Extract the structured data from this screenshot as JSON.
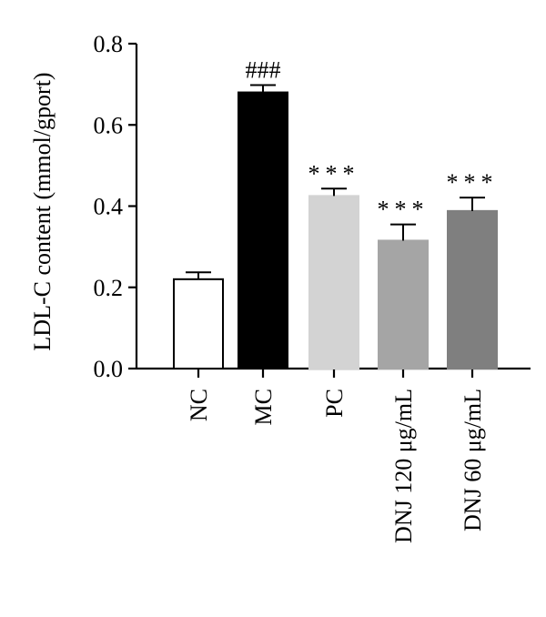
{
  "chart_data": {
    "type": "bar",
    "categories": [
      "NC",
      "MC",
      "PC",
      "DNJ 120 μg/mL",
      "DNJ 60 μg/mL"
    ],
    "values": [
      0.22,
      0.68,
      0.425,
      0.315,
      0.388
    ],
    "errors": [
      0.017,
      0.018,
      0.018,
      0.04,
      0.033
    ],
    "annotations": [
      "",
      "###",
      "***",
      "***",
      "***"
    ],
    "bar_colors": [
      "#ffffff",
      "#000000",
      "#d3d3d3",
      "#a5a5a5",
      "#7f7f7f"
    ],
    "title": "",
    "xlabel": "",
    "ylabel": "LDL-C content (mmol/gport)",
    "ylim": [
      0,
      0.8
    ],
    "yticks": [
      0.0,
      0.2,
      0.4,
      0.6,
      0.8
    ],
    "ytick_labels": [
      "0.0",
      "0.2",
      "0.4",
      "0.6",
      "0.8"
    ],
    "grid": false,
    "legend": "none"
  }
}
